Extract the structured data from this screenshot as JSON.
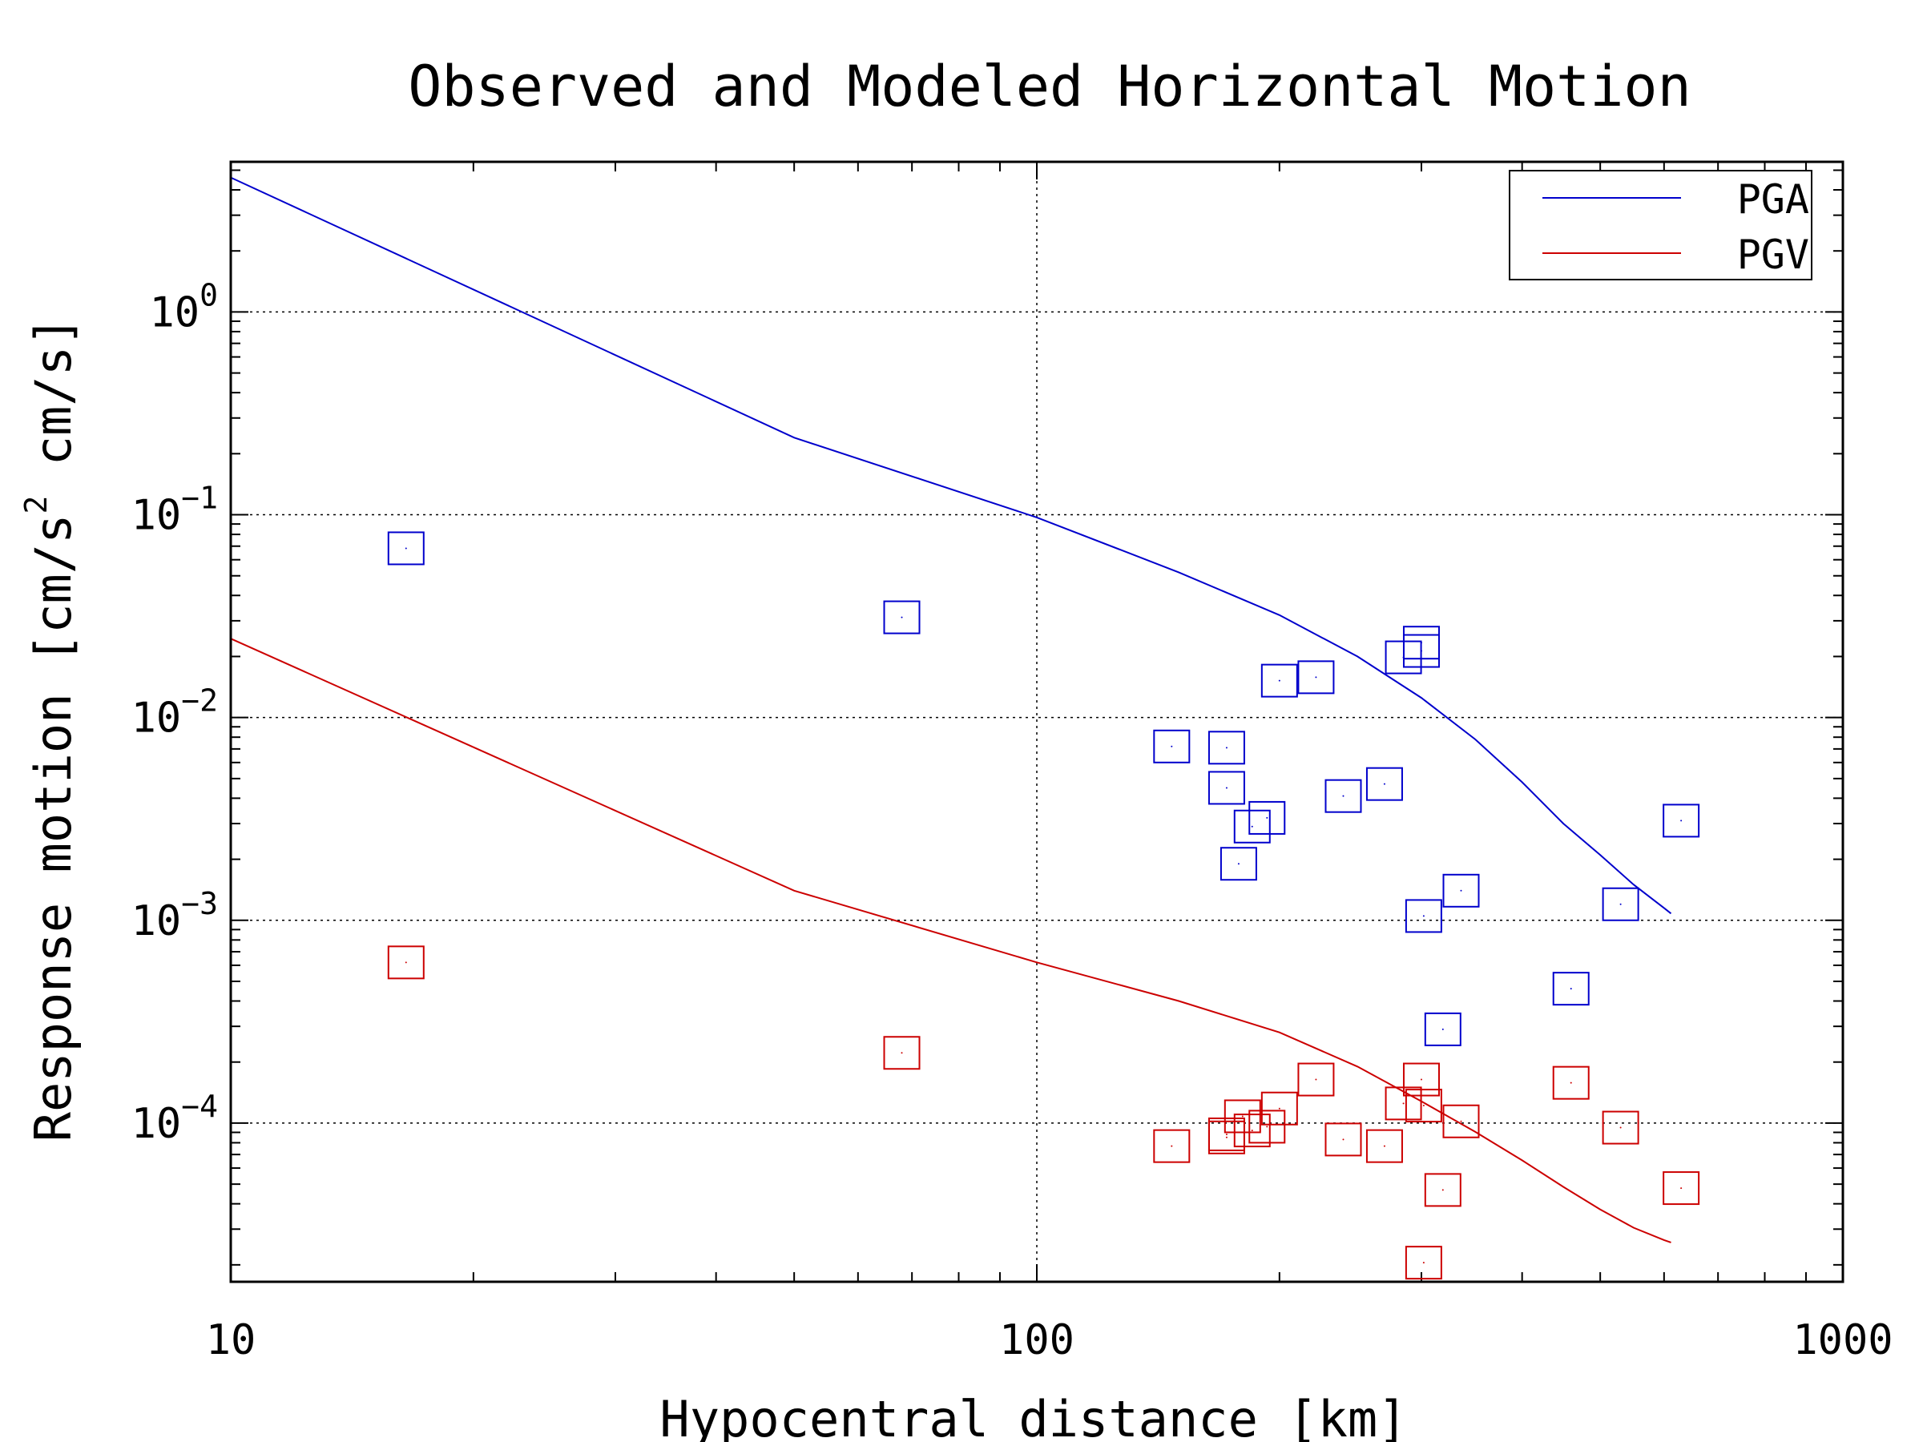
{
  "chart_data": {
    "type": "scatter",
    "title": "Observed and Modeled Horizontal Motion",
    "xlabel": "Hypocentral distance [km]",
    "ylabel": "Response motion  [cm/s²  cm/s]",
    "ylabel_parts": [
      "Response motion  [cm/s",
      "2",
      "  cm/s]"
    ],
    "xscale": "log",
    "yscale": "log",
    "xlim": [
      10,
      1000
    ],
    "ylim": [
      1.65e-05,
      5.5
    ],
    "grid": true,
    "legend_position": "top-right",
    "x_ticks": [
      {
        "value": 10,
        "label": "10"
      },
      {
        "value": 100,
        "label": "100"
      },
      {
        "value": 1000,
        "label": "1000"
      }
    ],
    "y_ticks": [
      {
        "value": 1,
        "base": "10",
        "exp": "0"
      },
      {
        "value": 0.1,
        "base": "10",
        "exp": "−1"
      },
      {
        "value": 0.01,
        "base": "10",
        "exp": "−2"
      },
      {
        "value": 0.001,
        "base": "10",
        "exp": "−3"
      },
      {
        "value": 0.0001,
        "base": "10",
        "exp": "−4"
      }
    ],
    "series": [
      {
        "name": "PGA",
        "color": "#0000cc",
        "model_line": [
          [
            10,
            4.6
          ],
          [
            50,
            0.24
          ],
          [
            100,
            0.097
          ],
          [
            150,
            0.052
          ],
          [
            200,
            0.032
          ],
          [
            250,
            0.02
          ],
          [
            300,
            0.0125
          ],
          [
            350,
            0.0078
          ],
          [
            400,
            0.0048
          ],
          [
            450,
            0.003
          ],
          [
            500,
            0.0021
          ],
          [
            550,
            0.0015
          ],
          [
            600,
            0.00115
          ],
          [
            612,
            0.00108
          ]
        ],
        "observed": [
          [
            16.5,
            0.0683
          ],
          [
            68,
            0.0312
          ],
          [
            300,
            0.0234
          ],
          [
            300,
            0.0213
          ],
          [
            285,
            0.0198
          ],
          [
            200,
            0.0152
          ],
          [
            222,
            0.0158
          ],
          [
            147,
            0.0072
          ],
          [
            172,
            0.0071
          ],
          [
            172,
            0.0045
          ],
          [
            193,
            0.0032
          ],
          [
            185,
            0.0029
          ],
          [
            270,
            0.0047
          ],
          [
            240,
            0.0041
          ],
          [
            178,
            0.0019
          ],
          [
            336,
            0.0014
          ],
          [
            302,
            0.00105
          ],
          [
            530,
            0.0012
          ],
          [
            630,
            0.0031
          ],
          [
            460,
            0.00046
          ],
          [
            319,
            0.00029
          ]
        ]
      },
      {
        "name": "PGV",
        "color": "#cc0000",
        "model_line": [
          [
            10,
            0.0245
          ],
          [
            50,
            0.0014
          ],
          [
            100,
            0.00062
          ],
          [
            150,
            0.0004
          ],
          [
            200,
            0.00028
          ],
          [
            250,
            0.00019
          ],
          [
            300,
            0.000128
          ],
          [
            350,
            9.05e-05
          ],
          [
            400,
            6.55e-05
          ],
          [
            450,
            4.85e-05
          ],
          [
            500,
            3.75e-05
          ],
          [
            550,
            3.05e-05
          ],
          [
            600,
            2.65e-05
          ],
          [
            612,
            2.58e-05
          ]
        ],
        "observed": [
          [
            16.5,
            0.00062
          ],
          [
            68,
            0.000222
          ],
          [
            222,
            0.000164
          ],
          [
            300,
            0.000164
          ],
          [
            285,
            0.000125
          ],
          [
            302,
            0.000122
          ],
          [
            460,
            0.000158
          ],
          [
            200,
            0.000118
          ],
          [
            180,
            0.000108
          ],
          [
            193,
            9.6e-05
          ],
          [
            185,
            9.2e-05
          ],
          [
            172,
            8.8e-05
          ],
          [
            172,
            8.5e-05
          ],
          [
            240,
            8.3e-05
          ],
          [
            270,
            7.7e-05
          ],
          [
            147,
            7.7e-05
          ],
          [
            336,
            0.000102
          ],
          [
            530,
            9.5e-05
          ],
          [
            319,
            4.68e-05
          ],
          [
            630,
            4.78e-05
          ],
          [
            302,
            2.05e-05
          ]
        ]
      }
    ]
  }
}
